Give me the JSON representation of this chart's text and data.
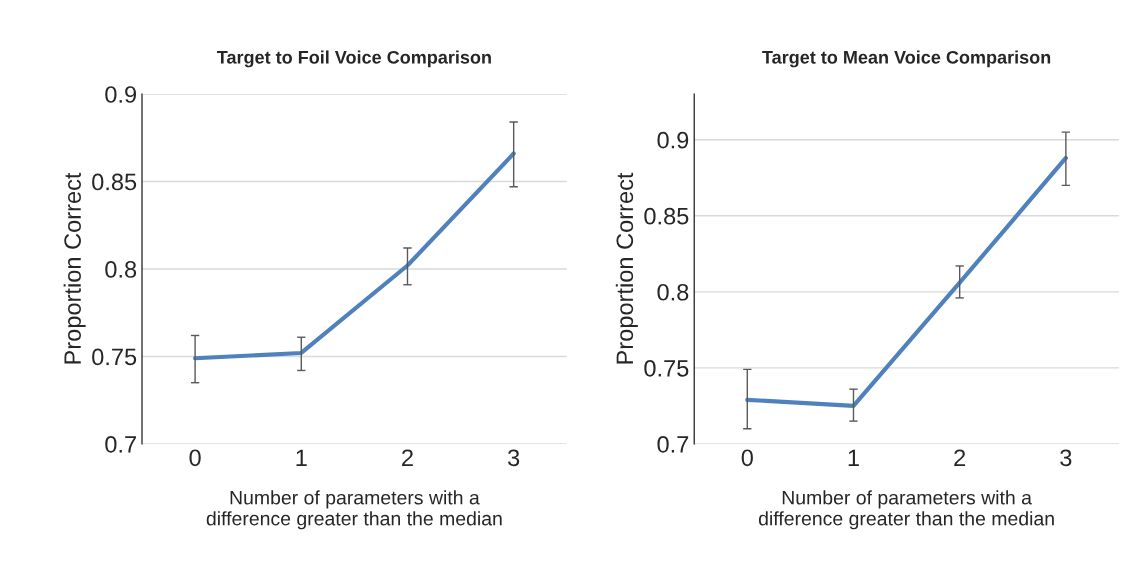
{
  "chart_data": [
    {
      "type": "line",
      "title": "Target to Foil Voice Comparison",
      "xlabel": "Number of parameters with a\ndifference greater than the median",
      "ylabel": "Proportion Correct",
      "categories": [
        "0",
        "1",
        "2",
        "3"
      ],
      "series": [
        {
          "color": "#4f81bd",
          "values": [
            0.749,
            0.752,
            0.802,
            0.866
          ],
          "errors": [
            [
              0.735,
              0.762
            ],
            [
              0.742,
              0.761
            ],
            [
              0.791,
              0.812
            ],
            [
              0.847,
              0.884
            ]
          ]
        }
      ],
      "ylim": [
        0.7,
        0.9
      ],
      "yticks": [
        0.7,
        0.75,
        0.8,
        0.85,
        0.9
      ],
      "grid": "y",
      "marker": "none",
      "line_style": "solid"
    },
    {
      "type": "line",
      "title": "Target to Mean Voice Comparison",
      "xlabel": "Number of parameters with a\ndifference greater than the median",
      "ylabel": "Proportion Correct",
      "categories": [
        "0",
        "1",
        "2",
        "3"
      ],
      "series": [
        {
          "color": "#4f81bd",
          "values": [
            0.729,
            0.725,
            0.806,
            0.888
          ],
          "errors": [
            [
              0.71,
              0.749
            ],
            [
              0.715,
              0.736
            ],
            [
              0.796,
              0.817
            ],
            [
              0.87,
              0.905
            ]
          ]
        }
      ],
      "ylim": [
        0.7,
        0.93
      ],
      "yticks": [
        0.7,
        0.75,
        0.8,
        0.85,
        0.9
      ],
      "grid": "y",
      "marker": "none",
      "line_style": "solid"
    }
  ]
}
